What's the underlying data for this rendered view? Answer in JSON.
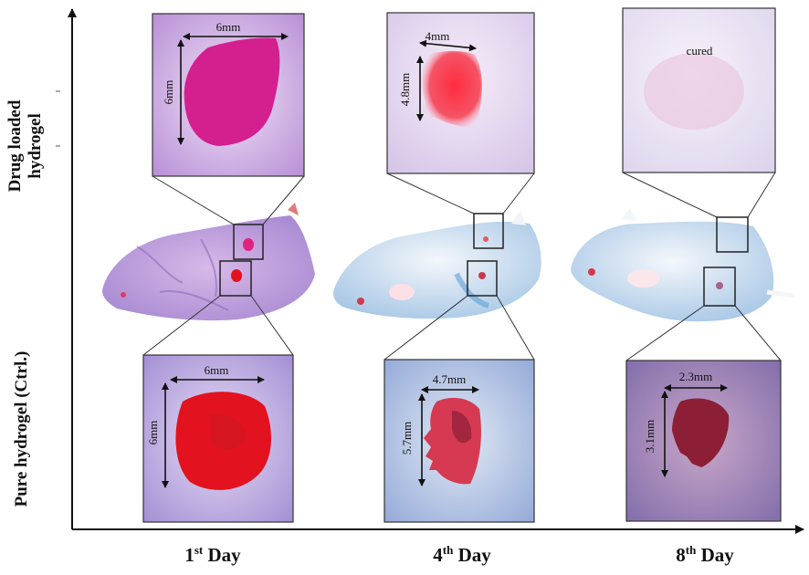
{
  "y_axis_labels": {
    "drug_loaded": [
      "Drug loaded",
      "hydrogel"
    ],
    "pure_ctrl": "Pure hydrogel (Ctrl.)"
  },
  "x_axis_labels": [
    {
      "num": "1",
      "sup": "st",
      "word": "Day"
    },
    {
      "num": "4",
      "sup": "th",
      "word": "Day"
    },
    {
      "num": "8",
      "sup": "th",
      "word": "Day"
    }
  ],
  "top_panels": [
    {
      "width_label": "6mm",
      "height_label": "6mm"
    },
    {
      "width_label": "4mm",
      "height_label": "4.8mm"
    },
    {
      "note": "cured"
    }
  ],
  "bottom_panels": [
    {
      "width_label": "6mm",
      "height_label": "6mm"
    },
    {
      "width_label": "4.7mm",
      "height_label": "5.7mm"
    },
    {
      "width_label": "2.3mm",
      "height_label": "3.1mm"
    }
  ],
  "colors": {
    "axis": "#111111",
    "drug_wound_day1": "#d41f8f",
    "ctrl_wound_day1": "#e3121f",
    "wound_day4": "#ef4a5a",
    "wound_dark": "#8c1f36"
  }
}
